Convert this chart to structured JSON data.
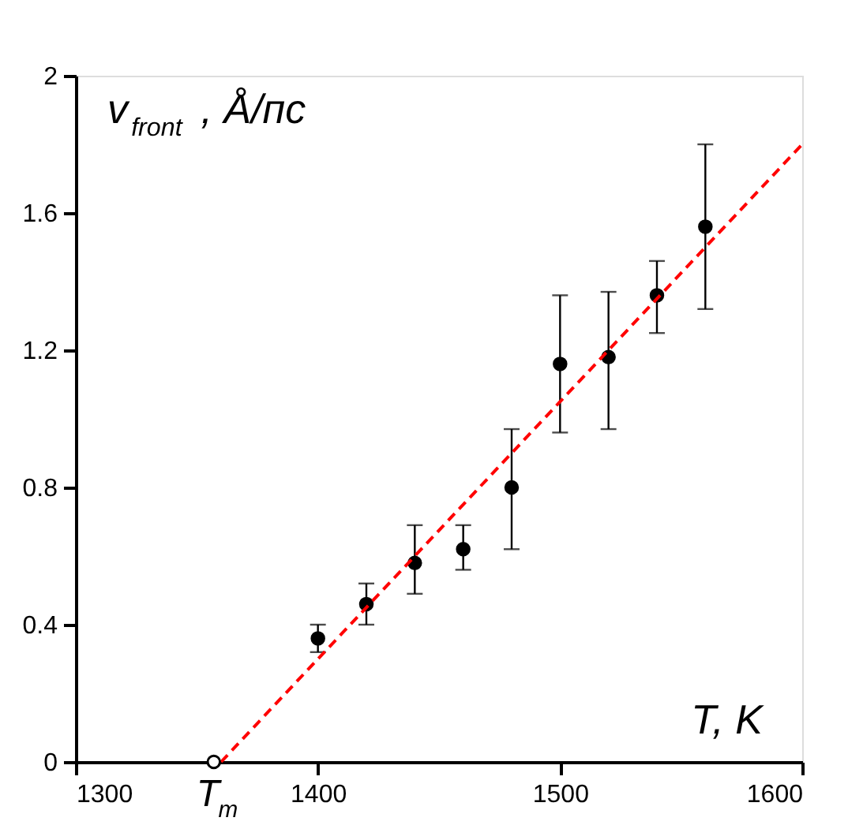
{
  "chart_data": {
    "type": "scatter",
    "xlabel": "T, K",
    "ylabel": "v$_{front}$, Å/пс",
    "xlim": [
      1300,
      1600
    ],
    "xticks": [
      1300,
      1400,
      1500,
      1600
    ],
    "ylim": [
      0,
      2
    ],
    "yticks": [
      0,
      0.4,
      0.8,
      1.2,
      1.6,
      2
    ],
    "grid": false,
    "marker": "circle",
    "series": [
      {
        "color": "#000000",
        "x": [
          1400,
          1420,
          1440,
          1460,
          1480,
          1500,
          1520,
          1540,
          1560
        ],
        "values": [
          0.36,
          0.46,
          0.58,
          0.62,
          0.8,
          1.16,
          1.18,
          1.36,
          1.56
        ],
        "errors": [
          [
            0.32,
            0.4
          ],
          [
            0.4,
            0.52
          ],
          [
            0.49,
            0.69
          ],
          [
            0.56,
            0.69
          ],
          [
            0.62,
            0.97
          ],
          [
            0.96,
            1.36
          ],
          [
            0.97,
            1.37
          ],
          [
            1.25,
            1.46
          ],
          [
            1.32,
            1.8
          ]
        ]
      },
      {
        "type": "line",
        "marker": "none",
        "color": "#ff0000",
        "line_style": "dashed",
        "x": [
          1360,
          1600
        ],
        "values": [
          0,
          1.8
        ]
      },
      {
        "color": "#ffffff",
        "x": [
          1357
        ],
        "values": [
          0
        ]
      }
    ],
    "annotations": [
      {
        "text": "T$_{m}$",
        "x": 1357,
        "y": 0
      }
    ]
  }
}
